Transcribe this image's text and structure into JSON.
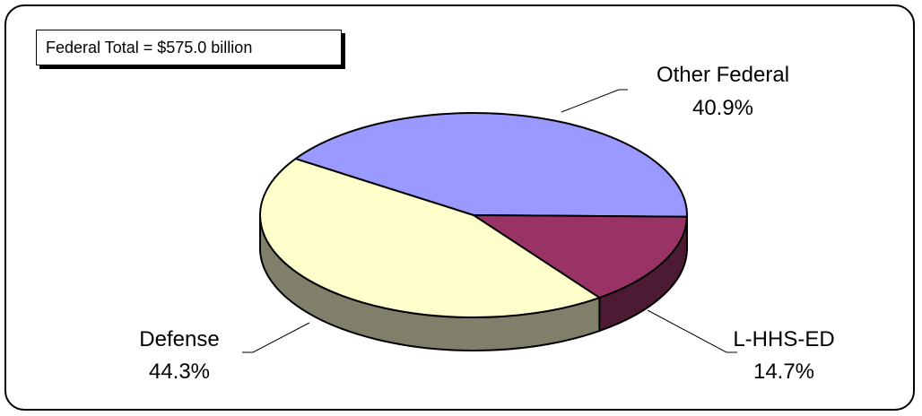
{
  "chart_data": {
    "type": "pie",
    "title": "",
    "annotation": "Federal Total = $575.0 billion",
    "categories": [
      "Other Federal",
      "L-HHS-ED",
      "Defense"
    ],
    "values": [
      40.9,
      14.7,
      44.3
    ],
    "value_labels": [
      "40.9%",
      "14.7%",
      "44.3%"
    ],
    "colors": [
      "#9999FF",
      "#993366",
      "#FFFFCC"
    ],
    "side_colors": [
      "#4D4D80",
      "#4D1A33",
      "#80806A"
    ],
    "style": "3d-pie"
  }
}
